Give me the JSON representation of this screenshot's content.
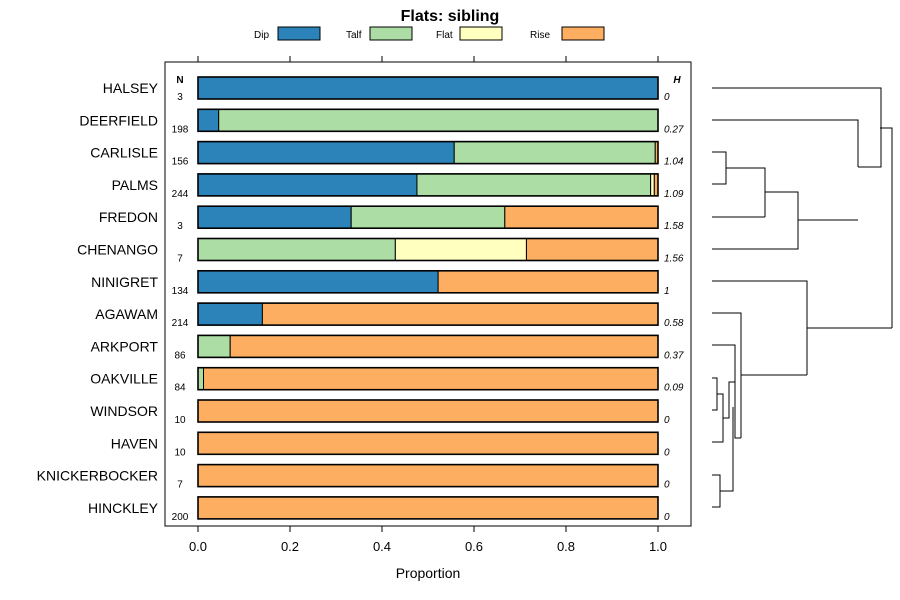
{
  "chart_data": {
    "type": "bar",
    "orientation": "horizontal",
    "stacked": true,
    "title": "Flats: sibling",
    "xlabel": "Proportion",
    "xlim": [
      0,
      1
    ],
    "xticks": [
      "0.0",
      "0.2",
      "0.4",
      "0.6",
      "0.8",
      "1.0"
    ],
    "xtick_values": [
      0,
      0.2,
      0.4,
      0.6,
      0.8,
      1.0
    ],
    "n_header": "N",
    "h_header": "H",
    "legend": [
      {
        "name": "Dip",
        "color": "#2b83ba"
      },
      {
        "name": "Talf",
        "color": "#abdda4"
      },
      {
        "name": "Flat",
        "color": "#ffffbf"
      },
      {
        "name": "Rise",
        "color": "#fdae61"
      }
    ],
    "categories": [
      "HALSEY",
      "DEERFIELD",
      "CARLISLE",
      "PALMS",
      "FREDON",
      "CHENANGO",
      "NINIGRET",
      "AGAWAM",
      "ARKPORT",
      "OAKVILLE",
      "WINDSOR",
      "HAVEN",
      "KNICKERBOCKER",
      "HINCKLEY"
    ],
    "n": [
      "3",
      "198",
      "156",
      "244",
      "3",
      "7",
      "134",
      "214",
      "86",
      "84",
      "10",
      "10",
      "7",
      "200"
    ],
    "h": [
      "0",
      "0.27",
      "1.04",
      "1.09",
      "1.58",
      "1.56",
      "1",
      "0.58",
      "0.37",
      "0.09",
      "0",
      "0",
      "0",
      "0"
    ],
    "series": [
      {
        "name": "Dip",
        "values": [
          1.0,
          0.045,
          0.557,
          0.476,
          0.333,
          0.0,
          0.522,
          0.14,
          0.0,
          0.0,
          0.0,
          0.0,
          0.0,
          0.0
        ]
      },
      {
        "name": "Talf",
        "values": [
          0.0,
          0.955,
          0.437,
          0.508,
          0.334,
          0.429,
          0.0,
          0.0,
          0.07,
          0.012,
          0.0,
          0.0,
          0.0,
          0.0
        ]
      },
      {
        "name": "Flat",
        "values": [
          0.0,
          0.0,
          0.0,
          0.008,
          0.0,
          0.285,
          0.0,
          0.0,
          0.0,
          0.0,
          0.0,
          0.0,
          0.0,
          0.0
        ]
      },
      {
        "name": "Rise",
        "values": [
          0.0,
          0.0,
          0.006,
          0.008,
          0.333,
          0.286,
          0.478,
          0.86,
          0.93,
          0.988,
          1.0,
          1.0,
          1.0,
          1.0
        ]
      }
    ]
  }
}
